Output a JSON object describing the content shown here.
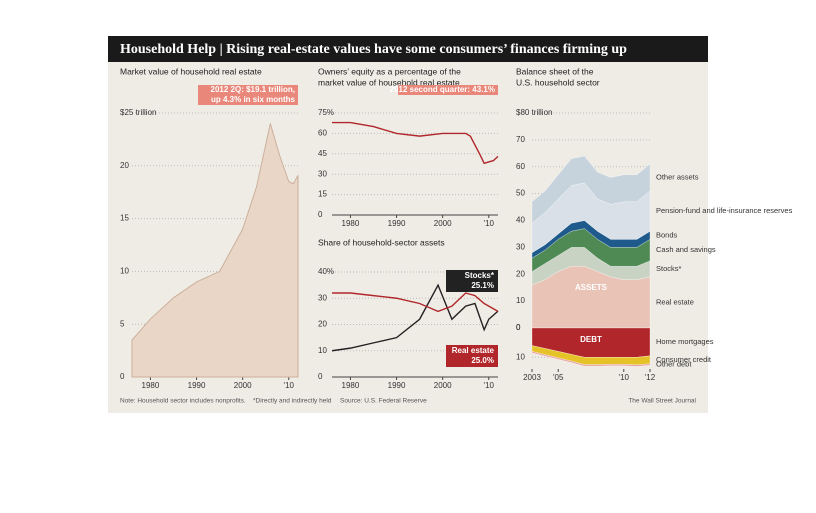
{
  "header": {
    "title": "Household Help | Rising real-estate values have some consumers’ finances firming up"
  },
  "footer": {
    "note": "Note: Household sector includes nonprofits.",
    "footnote": "*Directly and indirectly held",
    "source": "Source: U.S. Federal Reserve",
    "credit": "The Wall Street Journal"
  },
  "chart_data": [
    {
      "type": "area",
      "title": "Market value of household real estate",
      "annotation": [
        "2012 2Q: $19.1 trillion,",
        "up 4.3% in six months"
      ],
      "x": [
        1976,
        1980,
        1985,
        1990,
        1995,
        2000,
        2003,
        2006,
        2008,
        2010,
        2011,
        2012
      ],
      "values": [
        3.5,
        5.5,
        7.5,
        9,
        10,
        14,
        18,
        24,
        21,
        18.5,
        18.3,
        19.1
      ],
      "color": "#e9d6c6",
      "xlim": [
        1976,
        2012
      ],
      "xticks": [
        1980,
        1990,
        2000,
        {
          "value": 2010,
          "label": "'10"
        }
      ],
      "ylim": [
        0,
        25
      ],
      "yticks": [
        0,
        5,
        10,
        15,
        20,
        {
          "value": 25,
          "label": "$25 trillion"
        }
      ]
    },
    {
      "type": "line",
      "title": [
        "Owners’ equity as a percentage of the",
        "market value of household real estate"
      ],
      "annotation": [
        "2012 second quarter: 43.1%"
      ],
      "x": [
        1976,
        1980,
        1985,
        1990,
        1995,
        2000,
        2005,
        2006,
        2008,
        2009,
        2010,
        2011,
        2012
      ],
      "values": [
        68,
        68,
        65,
        60,
        58,
        60,
        60,
        58,
        45,
        38,
        39,
        40,
        43.1
      ],
      "color": "#b0262a",
      "xlim": [
        1976,
        2012
      ],
      "xticks": [
        1980,
        1990,
        2000,
        {
          "value": 2010,
          "label": "'10"
        }
      ],
      "ylim": [
        0,
        75
      ],
      "yticks": [
        0,
        15,
        30,
        45,
        60,
        {
          "value": 75,
          "label": "75%"
        }
      ]
    },
    {
      "type": "line",
      "title": "Share of household-sector assets",
      "x": [
        1976,
        1980,
        1985,
        1990,
        1995,
        1999,
        2002,
        2005,
        2007,
        2009,
        2010,
        2012
      ],
      "series": [
        {
          "name": "Stocks*",
          "color": "#222222",
          "values": [
            10,
            11,
            13,
            15,
            22,
            35,
            22,
            27,
            28,
            18,
            22,
            25.1
          ],
          "value_labels": [
            null,
            null,
            null,
            null,
            null,
            null,
            null,
            null,
            null,
            null,
            null,
            "25.1%"
          ]
        },
        {
          "name": "Real estate",
          "color": "#b0262a",
          "values": [
            32,
            32,
            31,
            30,
            28,
            25,
            27,
            32,
            31,
            28,
            27,
            25.0
          ],
          "value_labels": [
            null,
            null,
            null,
            null,
            null,
            null,
            null,
            null,
            null,
            null,
            null,
            "25.0%"
          ]
        }
      ],
      "xlim": [
        1976,
        2012
      ],
      "xticks": [
        1980,
        1990,
        2000,
        {
          "value": 2010,
          "label": "'10"
        }
      ],
      "ylim": [
        0,
        40
      ],
      "yticks": [
        0,
        10,
        20,
        30,
        {
          "value": 40,
          "label": "40%"
        }
      ]
    },
    {
      "type": "stacked-area",
      "title": [
        "Balance sheet of the",
        "U.S. household sector"
      ],
      "annotations": [
        "ASSETS",
        "DEBT"
      ],
      "x": [
        2003,
        2004,
        2005,
        2006,
        2007,
        2008,
        2009,
        2010,
        2011,
        2012
      ],
      "series": [
        {
          "name": "Real estate",
          "color": "#e8c3b6",
          "values": [
            16,
            18,
            21,
            23,
            23,
            21,
            19,
            18,
            18,
            19
          ]
        },
        {
          "name": "Stocks*",
          "color": "#c9d3c4",
          "values": [
            5,
            6,
            6,
            7,
            7,
            5,
            4,
            5,
            5,
            6
          ]
        },
        {
          "name": "Cash and savings",
          "color": "#4f8a55",
          "values": [
            5,
            5,
            6,
            6,
            7,
            7,
            7,
            7,
            7,
            8
          ]
        },
        {
          "name": "Bonds",
          "color": "#1f5a8c",
          "values": [
            2,
            2,
            2,
            3,
            3,
            3,
            3,
            3,
            3,
            3
          ]
        },
        {
          "name": "Pension-fund and life-insurance reserves",
          "color": "#d9e0e8",
          "values": [
            11,
            12,
            13,
            14,
            14,
            12,
            13,
            14,
            14,
            15
          ]
        },
        {
          "name": "Other assets",
          "color": "#c6d2dc",
          "values": [
            8,
            8,
            9,
            10,
            10,
            10,
            10,
            10,
            10,
            10
          ]
        },
        {
          "name": "Home mortgages",
          "color": "#b0262a",
          "axis": "y2",
          "values": [
            6,
            7,
            8,
            9,
            10,
            10,
            10,
            10,
            10,
            9.5
          ]
        },
        {
          "name": "Consumer credit",
          "color": "#e6c229",
          "axis": "y2",
          "values": [
            2,
            2.1,
            2.2,
            2.3,
            2.5,
            2.5,
            2.4,
            2.4,
            2.6,
            2.7
          ]
        },
        {
          "name": "Other debt",
          "color": "#e8a0a0",
          "axis": "y2",
          "values": [
            0.5,
            0.5,
            0.5,
            0.5,
            0.5,
            0.5,
            0.5,
            0.5,
            0.5,
            0.5
          ]
        }
      ],
      "xlim": [
        2003,
        2012
      ],
      "xticks": [
        2003,
        {
          "value": 2005,
          "label": "'05"
        },
        {
          "value": 2010,
          "label": "'10"
        },
        {
          "value": 2012,
          "label": "'12"
        }
      ],
      "ylim": [
        0,
        80
      ],
      "yticks": [
        0,
        10,
        20,
        30,
        40,
        50,
        60,
        {
          "value": 80,
          "label": "$80 trillion"
        },
        70
      ],
      "y2lim": [
        0,
        14
      ],
      "y2ticks": [
        0,
        10
      ]
    }
  ]
}
